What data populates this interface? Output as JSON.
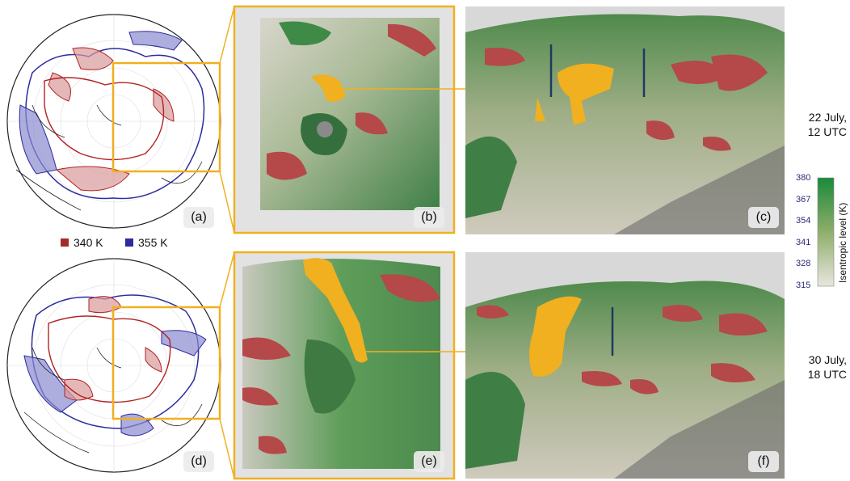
{
  "panels": {
    "a": "(a)",
    "b": "(b)",
    "c": "(c)",
    "d": "(d)",
    "e": "(e)",
    "f": "(f)"
  },
  "legend": [
    {
      "label": "340 K",
      "color": "#a52a2a"
    },
    {
      "label": "355 K",
      "color": "#2c2ca0"
    }
  ],
  "dates": {
    "top_line1": "22 July,",
    "top_line2": "12 UTC",
    "bottom_line1": "30 July,",
    "bottom_line2": "18 UTC"
  },
  "colorbar": {
    "title": "Isentropic level (K)",
    "ticks": [
      "380",
      "367",
      "354",
      "341",
      "328",
      "315"
    ],
    "color_top": "#1a8a3a",
    "color_bottom": "#e8e6df"
  },
  "colors": {
    "highlight": "#f0b020",
    "red_contour": "#b22222",
    "blue_contour": "#2c2ca0"
  }
}
